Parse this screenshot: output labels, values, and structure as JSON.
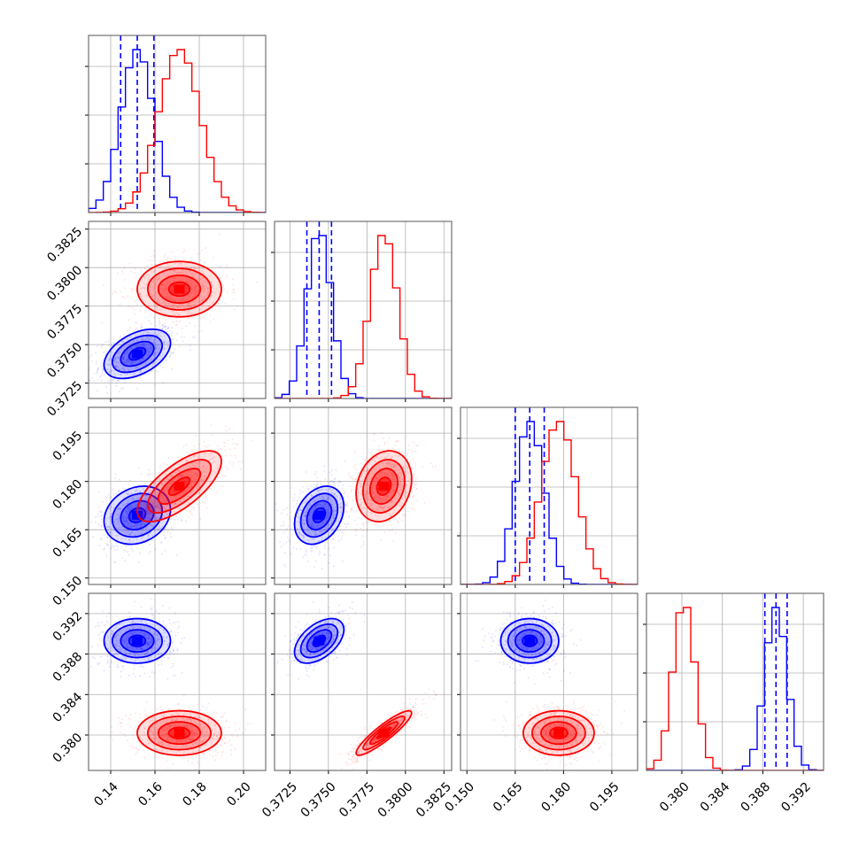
{
  "chart_data": {
    "type": "scatter",
    "subtype": "corner-plot",
    "title": "",
    "grid": true,
    "legend": "none",
    "parameters": [
      {
        "range": [
          0.13,
          0.21
        ],
        "ticks": [
          "0.14",
          "0.16",
          "0.18",
          "0.20"
        ],
        "tick_values": [
          0.14,
          0.16,
          0.18,
          0.2
        ]
      },
      {
        "range": [
          0.3715,
          0.383
        ],
        "ticks": [
          "0.3725",
          "0.3750",
          "0.3775",
          "0.3800",
          "0.3825"
        ],
        "tick_values": [
          0.3725,
          0.375,
          0.3775,
          0.38,
          0.3825
        ]
      },
      {
        "range": [
          0.148,
          0.203
        ],
        "ticks": [
          "0.150",
          "0.165",
          "0.180",
          "0.195"
        ],
        "tick_values": [
          0.15,
          0.165,
          0.18,
          0.195
        ]
      },
      {
        "range": [
          0.3765,
          0.394
        ],
        "ticks": [
          "0.380",
          "0.384",
          "0.388",
          "0.392"
        ],
        "tick_values": [
          0.38,
          0.384,
          0.388,
          0.392
        ]
      }
    ],
    "series": [
      {
        "color": "#0000ff",
        "means": [
          0.152,
          0.3744,
          0.1695,
          0.3893
        ],
        "sds": [
          0.0075,
          0.0008,
          0.0045,
          0.0011
        ],
        "quantiles_shown": true
      },
      {
        "color": "#ff0000",
        "means": [
          0.171,
          0.3786,
          0.1785,
          0.3802
        ],
        "sds": [
          0.0095,
          0.0009,
          0.0055,
          0.0011
        ],
        "quantiles_shown": false
      }
    ],
    "correlations": {
      "0": {
        "0-1": 0.45,
        "0-2": 0.2,
        "0-3": 0.0,
        "1-2": 0.3,
        "1-3": 0.5,
        "2-3": 0.0
      },
      "1": {
        "0-1": 0.0,
        "0-2": 0.7,
        "0-3": 0.0,
        "1-2": 0.2,
        "1-3": 0.9,
        "2-3": 0.0
      }
    }
  }
}
